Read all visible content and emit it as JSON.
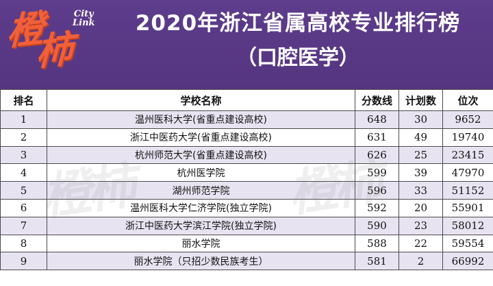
{
  "header": {
    "logo_text": "橙柿",
    "logo_sub_1": "City",
    "logo_sub_2": "Link",
    "title": "2020年浙江省属高校专业排行榜",
    "subtitle": "（口腔医学）"
  },
  "table": {
    "columns": [
      "排名",
      "学校名称",
      "分数线",
      "计划数",
      "位次"
    ],
    "rows": [
      {
        "rank": "1",
        "school": "温州医科大学(省重点建设高校)",
        "score": "648",
        "plan": "30",
        "position": "9652"
      },
      {
        "rank": "2",
        "school": "浙江中医药大学(省重点建设高校)",
        "score": "631",
        "plan": "49",
        "position": "19740"
      },
      {
        "rank": "3",
        "school": "杭州师范大学(省重点建设高校)",
        "score": "626",
        "plan": "25",
        "position": "23415"
      },
      {
        "rank": "4",
        "school": "杭州医学院",
        "score": "599",
        "plan": "39",
        "position": "47970"
      },
      {
        "rank": "5",
        "school": "湖州师范学院",
        "score": "596",
        "plan": "33",
        "position": "51152"
      },
      {
        "rank": "6",
        "school": "温州医科大学仁济学院(独立学院)",
        "score": "592",
        "plan": "20",
        "position": "55901"
      },
      {
        "rank": "7",
        "school": "浙江中医药大学滨江学院(独立学院)",
        "score": "590",
        "plan": "23",
        "position": "58012"
      },
      {
        "rank": "8",
        "school": "丽水学院",
        "score": "588",
        "plan": "22",
        "position": "59554"
      },
      {
        "rank": "9",
        "school": "丽水学院（只招少数民族考生）",
        "score": "581",
        "plan": "2",
        "position": "66992"
      }
    ]
  },
  "colors": {
    "header_bg": "#5a3a86",
    "logo": "#f0603a",
    "row_alt": "#e8e3f1"
  }
}
